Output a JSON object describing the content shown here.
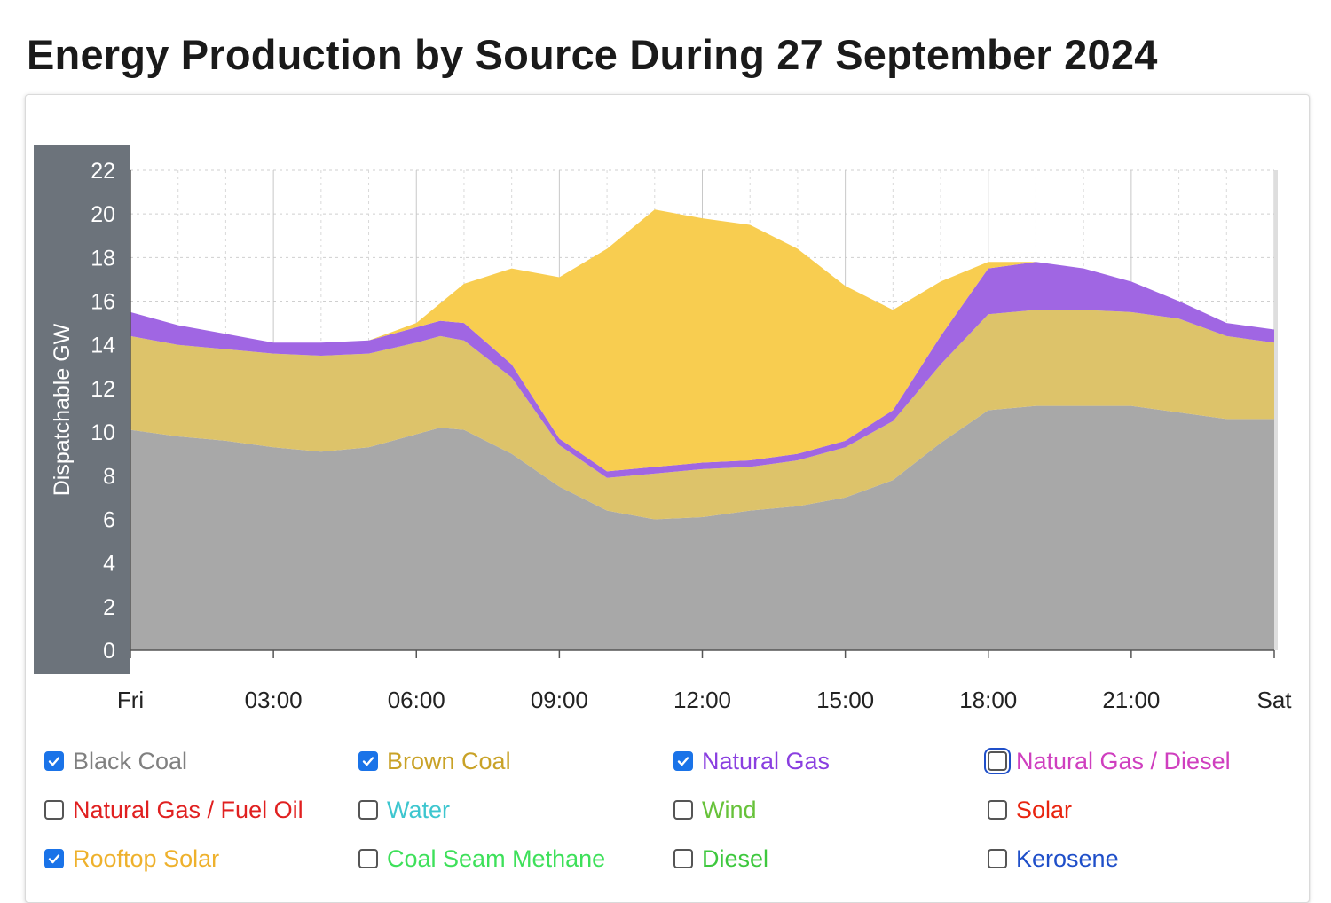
{
  "title": "Energy Production by Source During 27 September 2024",
  "chart_data": {
    "type": "area",
    "stacked": true,
    "title": "Energy Production by Source During 27 September 2024",
    "ylabel": "Dispatchable GW",
    "xlabel": "",
    "ylim": [
      0,
      22
    ],
    "yticks": [
      "0",
      "2",
      "4",
      "6",
      "8",
      "10",
      "12",
      "14",
      "16",
      "18",
      "20",
      "22"
    ],
    "xlim": [
      0,
      24
    ],
    "xticks": [
      {
        "h": 0,
        "label": "Fri"
      },
      {
        "h": 3,
        "label": "03:00"
      },
      {
        "h": 6,
        "label": "06:00"
      },
      {
        "h": 9,
        "label": "09:00"
      },
      {
        "h": 12,
        "label": "12:00"
      },
      {
        "h": 15,
        "label": "15:00"
      },
      {
        "h": 18,
        "label": "18:00"
      },
      {
        "h": 21,
        "label": "21:00"
      },
      {
        "h": 24,
        "label": "Sat"
      }
    ],
    "grid": true,
    "x": [
      0,
      1,
      2,
      3,
      4,
      5,
      6,
      6.5,
      7,
      8,
      9,
      10,
      11,
      12,
      13,
      14,
      15,
      16,
      17,
      18,
      19,
      20,
      21,
      22,
      23,
      24
    ],
    "series": [
      {
        "name": "Black Coal",
        "color": "#a8a8a8",
        "values": [
          10.1,
          9.8,
          9.6,
          9.3,
          9.1,
          9.3,
          9.9,
          10.2,
          10.1,
          9.0,
          7.5,
          6.4,
          6.0,
          6.1,
          6.4,
          6.6,
          7.0,
          7.8,
          9.5,
          11.0,
          11.2,
          11.2,
          11.2,
          10.9,
          10.6,
          10.6
        ]
      },
      {
        "name": "Brown Coal",
        "color": "#ddc36a",
        "values": [
          4.3,
          4.2,
          4.2,
          4.3,
          4.4,
          4.3,
          4.2,
          4.2,
          4.1,
          3.5,
          1.9,
          1.5,
          2.1,
          2.2,
          2.0,
          2.1,
          2.3,
          2.7,
          3.6,
          4.4,
          4.4,
          4.4,
          4.3,
          4.3,
          3.8,
          3.5
        ]
      },
      {
        "name": "Natural Gas",
        "color": "#a066e3",
        "values": [
          1.1,
          0.9,
          0.7,
          0.5,
          0.6,
          0.6,
          0.7,
          0.7,
          0.8,
          0.6,
          0.3,
          0.3,
          0.3,
          0.3,
          0.3,
          0.3,
          0.3,
          0.5,
          1.3,
          2.1,
          2.2,
          1.9,
          1.4,
          0.8,
          0.6,
          0.6
        ]
      },
      {
        "name": "Rooftop Solar",
        "color": "#f8cd50",
        "values": [
          0,
          0,
          0,
          0,
          0,
          0,
          0.2,
          0.8,
          1.8,
          4.4,
          7.4,
          10.2,
          11.8,
          11.2,
          10.8,
          9.4,
          7.1,
          4.6,
          2.5,
          0.3,
          0,
          0,
          0,
          0,
          0,
          0
        ]
      }
    ]
  },
  "legend": [
    {
      "label": "Black Coal",
      "checked": true,
      "color": "#808080"
    },
    {
      "label": "Brown Coal",
      "checked": true,
      "color": "#c9a227"
    },
    {
      "label": "Natural Gas",
      "checked": true,
      "color": "#8a3fe0"
    },
    {
      "label": "Natural Gas / Diesel",
      "checked": false,
      "color": "#cf3fbf"
    },
    {
      "label": "Natural Gas / Fuel Oil",
      "checked": false,
      "color": "#e02020"
    },
    {
      "label": "Water",
      "checked": false,
      "color": "#3dc6cf"
    },
    {
      "label": "Wind",
      "checked": false,
      "color": "#67c23a"
    },
    {
      "label": "Solar",
      "checked": false,
      "color": "#e8240f"
    },
    {
      "label": "Rooftop Solar",
      "checked": true,
      "color": "#eeb12c"
    },
    {
      "label": "Coal Seam Methane",
      "checked": false,
      "color": "#3ee05a"
    },
    {
      "label": "Diesel",
      "checked": false,
      "color": "#3ec83e"
    },
    {
      "label": "Kerosene",
      "checked": false,
      "color": "#1f4fc9"
    }
  ]
}
